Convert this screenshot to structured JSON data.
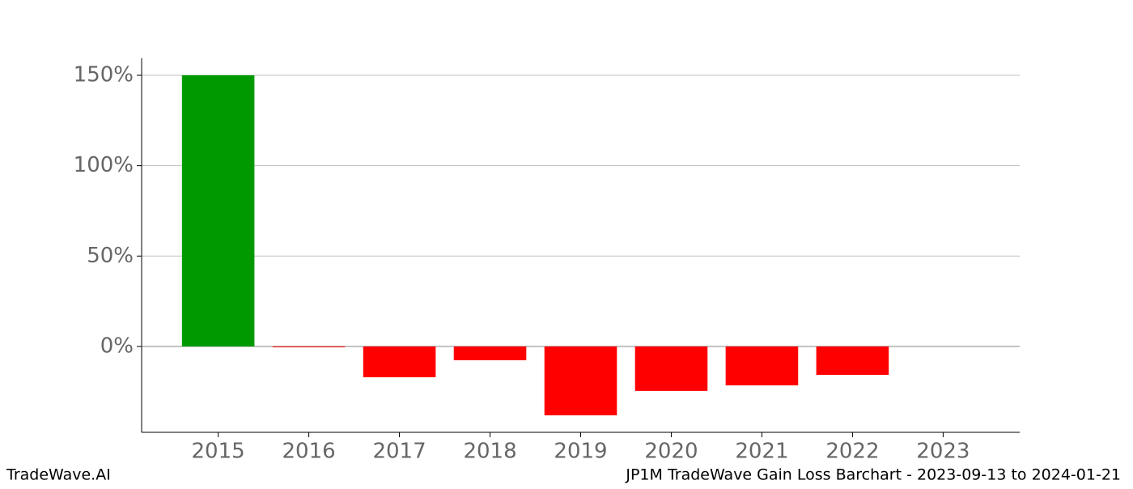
{
  "chart_data": {
    "type": "bar",
    "title": "JP1M TradeWave Gain Loss Barchart - 2023-09-13 to 2024-01-21",
    "brand": "TradeWave.AI",
    "categories": [
      "2015",
      "2016",
      "2017",
      "2018",
      "2019",
      "2020",
      "2021",
      "2022",
      "2023"
    ],
    "values": [
      150,
      -0.3,
      -17.0,
      -7.6,
      -38.1,
      -24.6,
      -21.5,
      -15.7,
      0
    ],
    "positive_color": "#009900",
    "negative_color": "#ff0000",
    "ylim": [
      -47.5,
      159.4
    ],
    "yticks": [
      {
        "value": 0,
        "label": "0%"
      },
      {
        "value": 50,
        "label": "50%"
      },
      {
        "value": 100,
        "label": "100%"
      },
      {
        "value": 150,
        "label": "150%"
      }
    ],
    "grid": true
  }
}
